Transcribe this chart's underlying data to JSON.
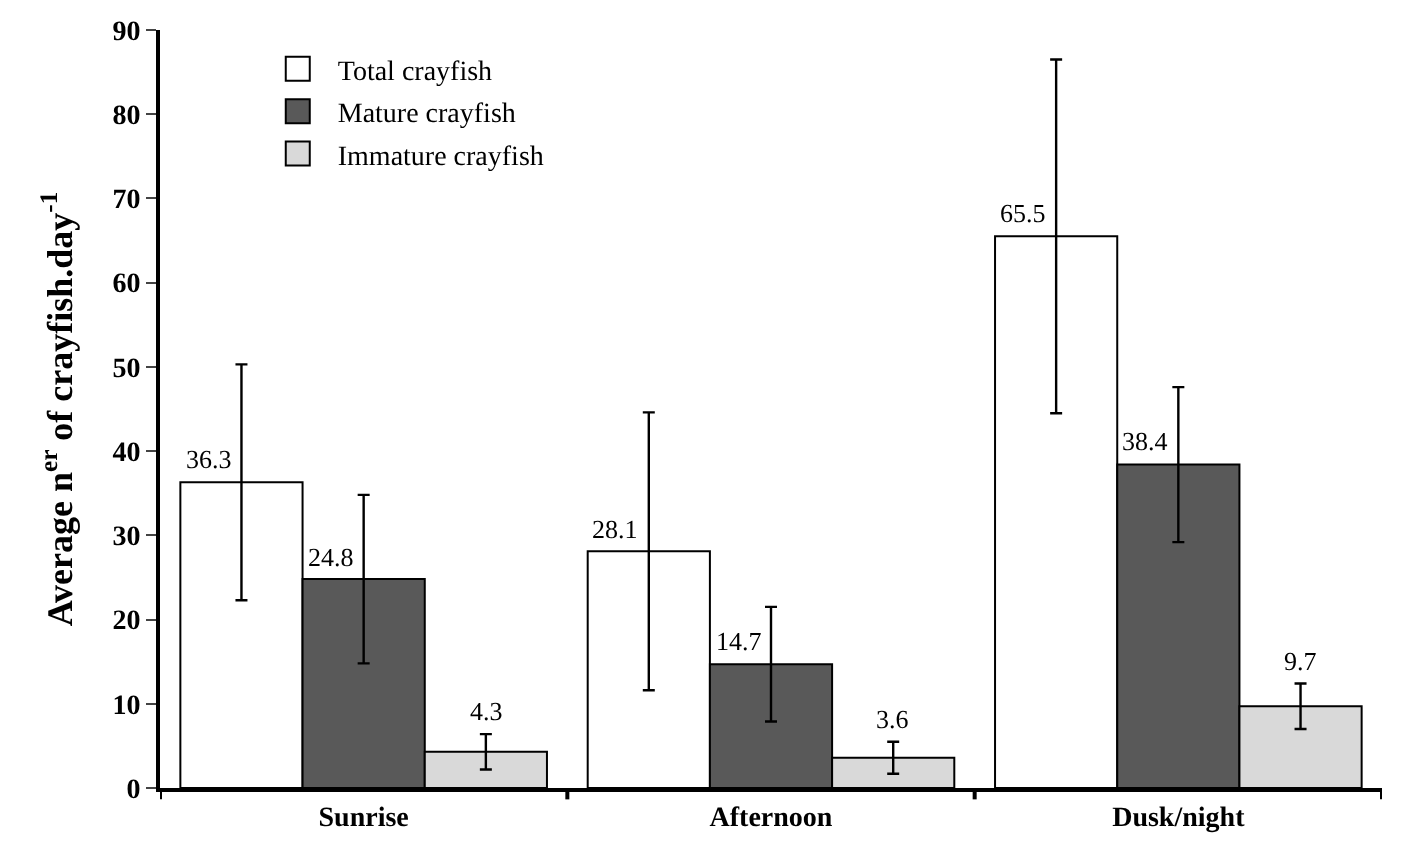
{
  "chart_data": {
    "type": "bar",
    "ylabel": "Average n$^{er}$ of crayfish.day$^{-1}$",
    "categories": [
      "Sunrise",
      "Afternoon",
      "Dusk/night"
    ],
    "series": [
      {
        "name": "Total crayfish",
        "color": "#ffffff",
        "values": [
          36.3,
          28.1,
          65.5
        ],
        "errors": [
          14,
          16.5,
          21
        ]
      },
      {
        "name": "Mature crayfish",
        "color": "#595959",
        "values": [
          24.8,
          14.7,
          38.4
        ],
        "errors": [
          10,
          6.8,
          9.2
        ]
      },
      {
        "name": "Immature crayfish",
        "color": "#d9d9d9",
        "values": [
          4.3,
          3.6,
          9.7
        ],
        "errors": [
          2.1,
          1.9,
          2.7
        ]
      }
    ],
    "ylim": [
      0,
      90
    ],
    "yticks": [
      0,
      10,
      20,
      30,
      40,
      50,
      60,
      70,
      80,
      90
    ],
    "data_labels": true,
    "legend": "top left"
  }
}
